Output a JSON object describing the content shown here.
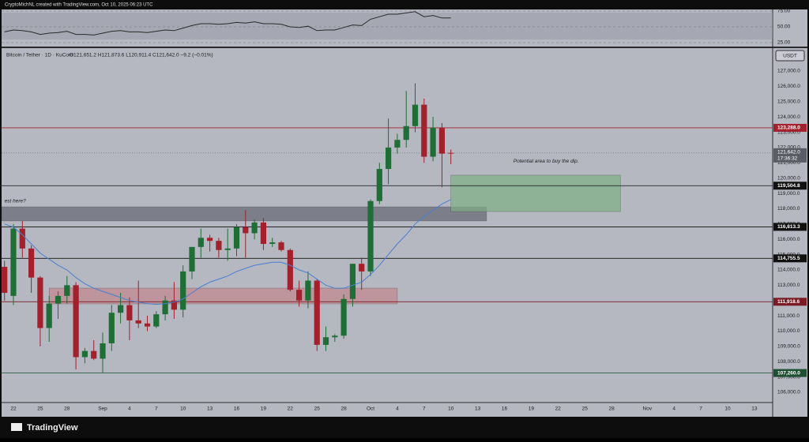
{
  "top_bar": "CryptoMichNL created with TradingView.com, Oct 10, 2025 06:23 UTC",
  "footer": "TradingView",
  "chart_data": [
    {
      "type": "line",
      "x": [
        "2025-08-21",
        "2025-08-22",
        "2025-08-23",
        "2025-08-24",
        "2025-08-25",
        "2025-08-26",
        "2025-08-27",
        "2025-08-28",
        "2025-08-29",
        "2025-08-30",
        "2025-08-31",
        "2025-09-01",
        "2025-09-02",
        "2025-09-03",
        "2025-09-04",
        "2025-09-05",
        "2025-09-06",
        "2025-09-07",
        "2025-09-08",
        "2025-09-09",
        "2025-09-10",
        "2025-09-11",
        "2025-09-12",
        "2025-09-13",
        "2025-09-14",
        "2025-09-15",
        "2025-09-16",
        "2025-09-17",
        "2025-09-18",
        "2025-09-19",
        "2025-09-20",
        "2025-09-21",
        "2025-09-22",
        "2025-09-23",
        "2025-09-24",
        "2025-09-25",
        "2025-09-26",
        "2025-09-27",
        "2025-09-28",
        "2025-09-29",
        "2025-09-30",
        "2025-10-01",
        "2025-10-02",
        "2025-10-03",
        "2025-10-04",
        "2025-10-05",
        "2025-10-06",
        "2025-10-07",
        "2025-10-08",
        "2025-10-09",
        "2025-10-10"
      ],
      "series": [
        {
          "color": "#2a2a2a",
          "values": [
            42,
            45,
            44,
            42,
            38,
            40,
            41,
            43,
            38,
            38,
            37,
            40,
            43,
            44,
            42,
            42,
            41,
            43,
            45,
            44,
            48,
            52,
            55,
            55,
            54,
            55,
            57,
            56,
            58,
            55,
            55,
            54,
            50,
            49,
            51,
            44,
            45,
            45,
            49,
            53,
            52,
            62,
            66,
            70,
            70,
            72,
            74,
            66,
            68,
            64,
            64
          ]
        }
      ],
      "ylim": [
        20,
        77.5
      ],
      "yticks": [
        {
          "value": 75,
          "label": "75.00"
        },
        {
          "value": 50,
          "label": "50.00"
        },
        {
          "value": 25,
          "label": "25.00"
        }
      ]
    },
    {
      "type": "candlestick",
      "symbol": "Bitcoin / Tether · 1D · KuCoin",
      "ohlc": "O121,651.2 H121,873.6 L120,911.4 C121,642.0 −9.2 (−0.01%)",
      "currency": "USDT",
      "x": [
        "2025-08-21",
        "2025-08-22",
        "2025-08-23",
        "2025-08-24",
        "2025-08-25",
        "2025-08-26",
        "2025-08-27",
        "2025-08-28",
        "2025-08-29",
        "2025-08-30",
        "2025-08-31",
        "2025-09-01",
        "2025-09-02",
        "2025-09-03",
        "2025-09-04",
        "2025-09-05",
        "2025-09-06",
        "2025-09-07",
        "2025-09-08",
        "2025-09-09",
        "2025-09-10",
        "2025-09-11",
        "2025-09-12",
        "2025-09-13",
        "2025-09-14",
        "2025-09-15",
        "2025-09-16",
        "2025-09-17",
        "2025-09-18",
        "2025-09-19",
        "2025-09-20",
        "2025-09-21",
        "2025-09-22",
        "2025-09-23",
        "2025-09-24",
        "2025-09-25",
        "2025-09-26",
        "2025-09-27",
        "2025-09-28",
        "2025-09-29",
        "2025-09-30",
        "2025-10-01",
        "2025-10-02",
        "2025-10-03",
        "2025-10-04",
        "2025-10-05",
        "2025-10-06",
        "2025-10-07",
        "2025-10-08",
        "2025-10-09",
        "2025-10-10"
      ],
      "open": [
        114200,
        112300,
        116700,
        115400,
        113500,
        110200,
        111800,
        112300,
        113000,
        108300,
        108700,
        108200,
        109200,
        111200,
        111700,
        110700,
        110500,
        110300,
        111100,
        112000,
        111400,
        113900,
        115500,
        116100,
        115900,
        115300,
        115400,
        116800,
        116400,
        117100,
        115700,
        115800,
        115300,
        112700,
        112000,
        113300,
        109100,
        109600,
        109700,
        112100,
        114400,
        113900,
        118500,
        120600,
        122000,
        122500,
        123400,
        124800,
        121400,
        123300,
        121651.2
      ],
      "high": [
        114600,
        117000,
        117200,
        115600,
        113600,
        112300,
        112600,
        113600,
        113200,
        108900,
        109400,
        109900,
        111700,
        112500,
        112200,
        113300,
        111000,
        111300,
        112300,
        113200,
        114300,
        115500,
        116700,
        116300,
        116100,
        116700,
        117000,
        117900,
        117300,
        117400,
        116100,
        115900,
        115400,
        113300,
        113900,
        113400,
        110300,
        109800,
        112400,
        114400,
        114800,
        118600,
        121000,
        123900,
        122900,
        125700,
        126200,
        125200,
        124000,
        123600,
        121873.6
      ],
      "low": [
        112000,
        111700,
        114800,
        112500,
        109000,
        109300,
        110800,
        111800,
        107500,
        107900,
        108100,
        107300,
        108700,
        110500,
        109400,
        110200,
        110000,
        110200,
        110700,
        110800,
        110900,
        113400,
        114800,
        115200,
        114800,
        114600,
        114900,
        114800,
        116000,
        115300,
        115500,
        115200,
        112600,
        111600,
        111500,
        108700,
        108700,
        109300,
        109500,
        111600,
        112700,
        113600,
        118300,
        119600,
        121600,
        122000,
        123000,
        121000,
        121100,
        119400,
        120911.4
      ],
      "close": [
        112500,
        116700,
        115400,
        113500,
        110200,
        111800,
        112300,
        113000,
        108300,
        108700,
        108200,
        109200,
        111200,
        111700,
        110700,
        110500,
        110300,
        111100,
        112000,
        111400,
        113900,
        115500,
        116100,
        115900,
        115300,
        115400,
        116800,
        116400,
        117100,
        115700,
        115800,
        115300,
        112700,
        112000,
        113300,
        109100,
        109600,
        109700,
        112100,
        114400,
        113900,
        118500,
        120600,
        122000,
        122500,
        123400,
        124800,
        121400,
        123300,
        121600,
        121642
      ],
      "up_color": "#1f6e35",
      "down_color": "#a3202c",
      "ma": {
        "color": "#4a7fd0",
        "values": [
          117000,
          116800,
          116300,
          115700,
          115100,
          114700,
          114300,
          114000,
          113500,
          113100,
          112800,
          112600,
          112400,
          112200,
          112000,
          111900,
          111800,
          111750,
          111800,
          111900,
          112100,
          112500,
          112900,
          113200,
          113400,
          113600,
          113900,
          114100,
          114300,
          114400,
          114500,
          114500,
          114300,
          114000,
          113800,
          113400,
          113000,
          112800,
          112800,
          113000,
          113200,
          113700,
          114300,
          115000,
          115700,
          116300,
          117000,
          117500,
          117900,
          118300,
          118600
        ]
      },
      "ylim": [
        105330,
        128445
      ],
      "yticks": [
        {
          "value": 106000,
          "label": "106,000.0"
        },
        {
          "value": 107000,
          "label": "107,000.0"
        },
        {
          "value": 108000,
          "label": "108,000.0"
        },
        {
          "value": 109000,
          "label": "109,000.0"
        },
        {
          "value": 110000,
          "label": "110,000.0"
        },
        {
          "value": 111000,
          "label": "111,000.0"
        },
        {
          "value": 112000,
          "label": "112,000.0"
        },
        {
          "value": 113000,
          "label": "113,000.0"
        },
        {
          "value": 114000,
          "label": "114,000.0"
        },
        {
          "value": 115000,
          "label": "115,000.0"
        },
        {
          "value": 116000,
          "label": "116,000.0"
        },
        {
          "value": 117000,
          "label": "117,000.0"
        },
        {
          "value": 118000,
          "label": "118,000.0"
        },
        {
          "value": 119000,
          "label": "119,000.0"
        },
        {
          "value": 120000,
          "label": "120,000.0"
        },
        {
          "value": 121000,
          "label": "121,000.0"
        },
        {
          "value": 122000,
          "label": "122,000.0"
        },
        {
          "value": 123000,
          "label": "123,000.0"
        },
        {
          "value": 124000,
          "label": "124,000.0"
        },
        {
          "value": 125000,
          "label": "125,000.0"
        },
        {
          "value": 126000,
          "label": "126,000.0"
        },
        {
          "value": 127000,
          "label": "127,000.0"
        }
      ],
      "xlim": [
        "2025-08-21",
        "2025-11-15"
      ],
      "xticks": [
        {
          "value": "2025-08-22",
          "label": "22"
        },
        {
          "value": "2025-08-25",
          "label": "25"
        },
        {
          "value": "2025-08-28",
          "label": "28"
        },
        {
          "value": "2025-09-01",
          "label": "Sep"
        },
        {
          "value": "2025-09-04",
          "label": "4"
        },
        {
          "value": "2025-09-07",
          "label": "7"
        },
        {
          "value": "2025-09-10",
          "label": "10"
        },
        {
          "value": "2025-09-13",
          "label": "13"
        },
        {
          "value": "2025-09-16",
          "label": "16"
        },
        {
          "value": "2025-09-19",
          "label": "19"
        },
        {
          "value": "2025-09-22",
          "label": "22"
        },
        {
          "value": "2025-09-25",
          "label": "25"
        },
        {
          "value": "2025-09-28",
          "label": "28"
        },
        {
          "value": "2025-10-01",
          "label": "Oct"
        },
        {
          "value": "2025-10-04",
          "label": "4"
        },
        {
          "value": "2025-10-07",
          "label": "7"
        },
        {
          "value": "2025-10-10",
          "label": "10"
        },
        {
          "value": "2025-10-13",
          "label": "13"
        },
        {
          "value": "2025-10-16",
          "label": "16"
        },
        {
          "value": "2025-10-19",
          "label": "19"
        },
        {
          "value": "2025-10-22",
          "label": "22"
        },
        {
          "value": "2025-10-25",
          "label": "25"
        },
        {
          "value": "2025-10-28",
          "label": "28"
        },
        {
          "value": "2025-11-01",
          "label": "Nov"
        },
        {
          "value": "2025-11-04",
          "label": "4"
        },
        {
          "value": "2025-11-07",
          "label": "7"
        },
        {
          "value": "2025-11-10",
          "label": "10"
        },
        {
          "value": "2025-11-13",
          "label": "13"
        }
      ],
      "levels": [
        {
          "value": 123288,
          "label": "123,288.0",
          "color": "#a3202c"
        },
        {
          "value": 119504.8,
          "label": "119,504.8",
          "color": "#111111"
        },
        {
          "value": 116813.3,
          "label": "116,813.3",
          "color": "#111111"
        },
        {
          "value": 114755.5,
          "label": "114,755.5",
          "color": "#111111"
        },
        {
          "value": 111918.6,
          "label": "111,918.6",
          "color": "#7a1a22"
        },
        {
          "value": 107260,
          "label": "107,260.0",
          "color": "#1d4f33"
        }
      ],
      "current": {
        "value": 121642,
        "label": "121,642.0",
        "countdown": "17:36:32",
        "color": "#5a5d66"
      },
      "zones": [
        {
          "from": "2025-08-19",
          "to": "2025-10-14",
          "low": 117200,
          "high": 118125,
          "color": "rgba(105,107,118,0.75)"
        },
        {
          "from": "2025-08-26",
          "to": "2025-10-04",
          "low": 111780,
          "high": 112810,
          "color": "rgba(196,120,128,0.55)"
        },
        {
          "from": "2025-10-10",
          "to": "2025-10-29",
          "low": 117815,
          "high": 120190,
          "color": "rgba(125,175,130,0.7)"
        }
      ],
      "annotations": [
        {
          "text": "Potential area to buy the dip.",
          "x": "2025-10-17",
          "y": 121100
        },
        {
          "text": "est here?",
          "x": "2025-08-21",
          "y": 118500
        }
      ]
    }
  ]
}
